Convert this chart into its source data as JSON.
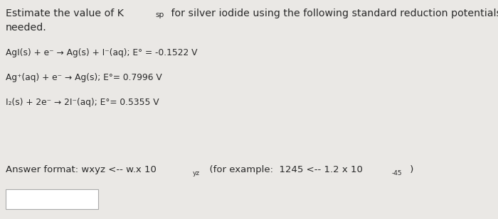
{
  "background_color": "#eae8e5",
  "text_color": "#2a2a2a",
  "box_color": "#ffffff",
  "box_edge_color": "#aaaaaa",
  "line1a": "Estimate the value of K",
  "line1_sub": "sp",
  "line1b": " for silver iodide using the following standard reduction potentials as",
  "line2": "needed.",
  "eq1": "AgI(s) + e⁻ → Ag(s) + I⁻(aq); E° = -0.1522 V",
  "eq2": "Ag⁺(aq) + e⁻ → Ag(s); E°= 0.7996 V",
  "eq3": "I₂(s) + 2e⁻ → 2I⁻(aq); E°= 0.5355 V",
  "ans_part1": "Answer format: wxyz <-- w.x 10",
  "ans_sup1": "yz",
  "ans_part2": "  (for example:  1245 <-- 1.2 x 10",
  "ans_sup2": "-45",
  "ans_part3": " )",
  "fontsize_title": 10.2,
  "fontsize_eq": 8.8,
  "fontsize_ans": 9.5
}
